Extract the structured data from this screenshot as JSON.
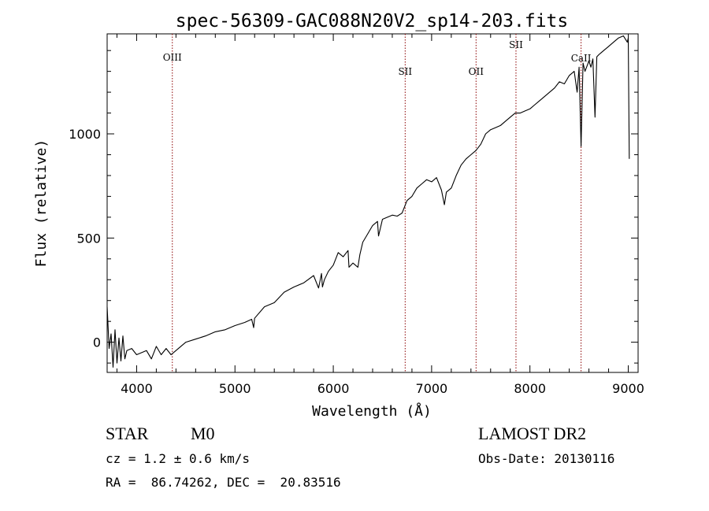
{
  "chart_data": {
    "type": "line",
    "title": "spec-56309-GAC088N20V2_sp14-203.fits",
    "xlabel": "Wavelength (Å)",
    "ylabel": "Flux (relative)",
    "xlim": [
      3700,
      9100
    ],
    "ylim": [
      -145,
      1480
    ],
    "x_ticks": [
      4000,
      5000,
      6000,
      7000,
      8000,
      9000
    ],
    "y_ticks": [
      0,
      500,
      1000
    ],
    "grid": false,
    "line_color": "#000000",
    "marker_color": "#8b0000",
    "spectral_lines": [
      {
        "name": "OIII",
        "wavelength": 4363
      },
      {
        "name": "SII",
        "wavelength": 6731
      },
      {
        "name": "OII",
        "wavelength": 7452
      },
      {
        "name": "SII",
        "wavelength": 7858
      },
      {
        "name": "CaII",
        "wavelength": 8520
      }
    ],
    "series": [
      {
        "x": [
          3700,
          3720,
          3740,
          3760,
          3780,
          3800,
          3820,
          3840,
          3860,
          3880,
          3900,
          3950,
          4000,
          4050,
          4100,
          4150,
          4200,
          4250,
          4300,
          4350,
          4400,
          4500,
          4600,
          4700,
          4800,
          4900,
          5000,
          5100,
          5170,
          5190,
          5200,
          5300,
          5400,
          5500,
          5600,
          5700,
          5800,
          5850,
          5880,
          5890,
          5910,
          5950,
          6000,
          6050,
          6100,
          6150,
          6160,
          6200,
          6250,
          6270,
          6300,
          6350,
          6400,
          6450,
          6460,
          6500,
          6550,
          6600,
          6650,
          6700,
          6750,
          6800,
          6850,
          6900,
          6950,
          7000,
          7050,
          7100,
          7130,
          7150,
          7200,
          7250,
          7300,
          7350,
          7400,
          7450,
          7500,
          7550,
          7600,
          7650,
          7700,
          7750,
          7800,
          7850,
          7900,
          7950,
          8000,
          8050,
          8100,
          8150,
          8200,
          8250,
          8300,
          8350,
          8400,
          8450,
          8480,
          8500,
          8520,
          8540,
          8560,
          8600,
          8620,
          8640,
          8662,
          8680,
          8700,
          8750,
          8800,
          8850,
          8900,
          8950,
          8990,
          9000,
          9010
        ],
        "y": [
          170,
          -30,
          40,
          -120,
          60,
          -100,
          20,
          -90,
          30,
          -80,
          -40,
          -30,
          -60,
          -50,
          -40,
          -80,
          -20,
          -60,
          -30,
          -60,
          -40,
          0,
          15,
          30,
          50,
          60,
          80,
          95,
          110,
          70,
          115,
          170,
          190,
          240,
          265,
          285,
          320,
          260,
          330,
          265,
          300,
          340,
          370,
          430,
          410,
          440,
          360,
          380,
          360,
          420,
          480,
          520,
          560,
          580,
          510,
          590,
          600,
          610,
          605,
          620,
          680,
          700,
          740,
          760,
          780,
          770,
          790,
          730,
          660,
          720,
          740,
          800,
          850,
          880,
          900,
          920,
          950,
          1000,
          1020,
          1030,
          1040,
          1060,
          1080,
          1100,
          1100,
          1110,
          1120,
          1140,
          1160,
          1180,
          1200,
          1220,
          1250,
          1240,
          1280,
          1300,
          1200,
          1320,
          940,
          1340,
          1300,
          1350,
          1320,
          1360,
          1080,
          1370,
          1380,
          1400,
          1420,
          1440,
          1460,
          1470,
          1440,
          1460,
          880
        ]
      }
    ]
  },
  "info": {
    "object_type": "STAR",
    "subclass": "M0",
    "survey": "LAMOST DR2",
    "cz": "cz = 1.2 ± 0.6 km/s",
    "obs_date": "Obs-Date: 20130116",
    "radec": "RA =  86.74262, DEC =  20.83516"
  }
}
